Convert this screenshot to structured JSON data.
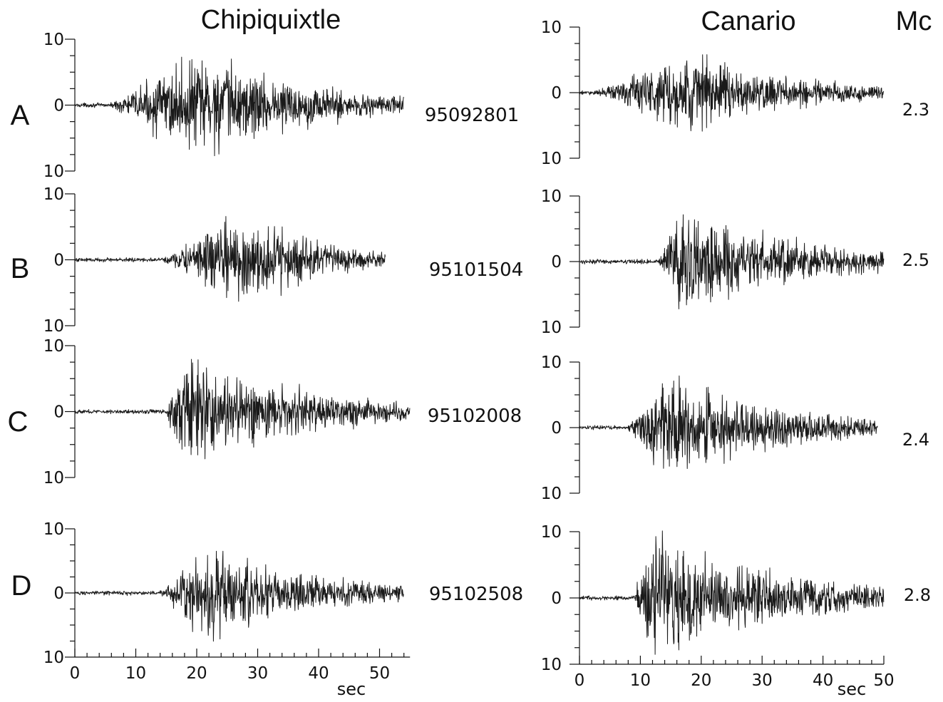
{
  "chart_data": {
    "type": "line",
    "columns": [
      {
        "title": "Chipiquixtle",
        "x_unit": "sec",
        "xlim": [
          0,
          55
        ],
        "x_ticks": [
          0,
          10,
          20,
          30,
          40,
          50
        ]
      },
      {
        "title": "Canario",
        "x_unit": "sec",
        "xlim": [
          0,
          50
        ],
        "x_ticks": [
          0,
          10,
          20,
          30,
          40,
          50
        ]
      }
    ],
    "magnitude_header": "Mc",
    "y_ticks": [
      "10",
      "0",
      "10"
    ],
    "ylim": [
      -10,
      10
    ],
    "rows": [
      {
        "label": "A",
        "event_id": "95092801",
        "Mc": "2.3",
        "traces": [
          {
            "station": "Chipiquixtle",
            "duration_s": 54,
            "onset_s": 6,
            "peak_time_s": 21,
            "peak_amp": 8.5
          },
          {
            "station": "Canario",
            "duration_s": 50,
            "onset_s": 3,
            "peak_time_s": 18,
            "peak_amp": 6.5
          }
        ]
      },
      {
        "label": "B",
        "event_id": "95101504",
        "Mc": "2.5",
        "traces": [
          {
            "station": "Chipiquixtle",
            "duration_s": 51,
            "onset_s": 14.5,
            "peak_time_s": 28,
            "peak_amp": 7.5
          },
          {
            "station": "Canario",
            "duration_s": 50,
            "onset_s": 13,
            "peak_time_s": 16,
            "peak_amp": 9
          }
        ]
      },
      {
        "label": "C",
        "event_id": "95102008",
        "Mc": "2.4",
        "traces": [
          {
            "station": "Chipiquixtle",
            "duration_s": 55,
            "onset_s": 15,
            "peak_time_s": 18,
            "peak_amp": 8.8
          },
          {
            "station": "Canario",
            "duration_s": 49,
            "onset_s": 8,
            "peak_time_s": 15,
            "peak_amp": 8.5
          }
        ]
      },
      {
        "label": "D",
        "event_id": "95102508",
        "Mc": "2.8",
        "traces": [
          {
            "station": "Chipiquixtle",
            "duration_s": 54,
            "onset_s": 14,
            "peak_time_s": 22,
            "peak_amp": 7.8
          },
          {
            "station": "Canario",
            "duration_s": 50,
            "onset_s": 9,
            "peak_time_s": 11,
            "peak_amp": 10.5
          }
        ]
      }
    ]
  }
}
